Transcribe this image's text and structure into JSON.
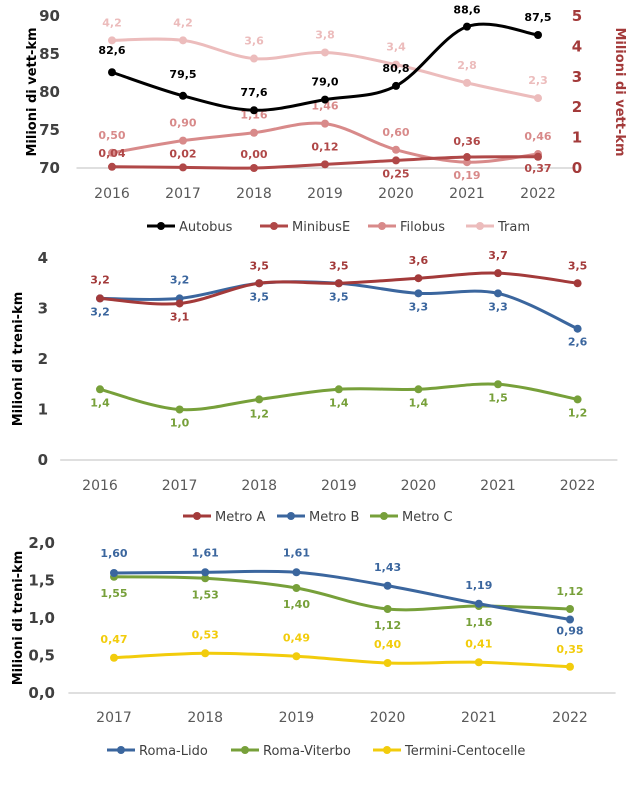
{
  "chart_data": [
    {
      "type": "line",
      "categories": [
        "2016",
        "2017",
        "2018",
        "2019",
        "2020",
        "2021",
        "2022"
      ],
      "ylabel": "Milioni di vett-km",
      "ylabel_right": "Milioni di vett-km",
      "ylim": [
        70,
        90
      ],
      "ylim_right": [
        0,
        5
      ],
      "yticks": [
        "70",
        "75",
        "80",
        "85",
        "90"
      ],
      "yticks_right": [
        "0",
        "1",
        "2",
        "3",
        "4",
        "5"
      ],
      "series": [
        {
          "name": "Autobus",
          "axis": "left",
          "color": "#000000",
          "values": [
            82.6,
            79.5,
            77.6,
            79.0,
            80.8,
            88.6,
            87.5
          ],
          "labels": [
            "82,6",
            "79,5",
            "77,6",
            "79,0",
            "80,8",
            "88,6",
            "87,5"
          ]
        },
        {
          "name": "MinibusE",
          "axis": "right",
          "color": "#b04848",
          "values": [
            0.04,
            0.02,
            0.0,
            0.12,
            0.25,
            0.36,
            0.37
          ],
          "labels": [
            "0,04",
            "0,02",
            "0,00",
            "0,12",
            "0,25",
            "0,36",
            "0,37"
          ]
        },
        {
          "name": "Filobus",
          "axis": "right",
          "color": "#d88a8a",
          "values": [
            0.5,
            0.9,
            1.16,
            1.46,
            0.6,
            0.19,
            0.46
          ],
          "labels": [
            "0,50",
            "0,90",
            "1,16",
            "1,46",
            "0,60",
            "0,19",
            "0,46"
          ]
        },
        {
          "name": "Tram",
          "axis": "right",
          "color": "#ecbcbc",
          "values": [
            4.2,
            4.2,
            3.6,
            3.8,
            3.4,
            2.8,
            2.3
          ],
          "labels": [
            "4,2",
            "4,2",
            "3,6",
            "3,8",
            "3,4",
            "2,8",
            "2,3"
          ]
        }
      ]
    },
    {
      "type": "line",
      "categories": [
        "2016",
        "2017",
        "2018",
        "2019",
        "2020",
        "2021",
        "2022"
      ],
      "ylabel": "Milioni di treni-km",
      "ylim": [
        0,
        4
      ],
      "yticks": [
        "0",
        "1",
        "2",
        "3",
        "4"
      ],
      "series": [
        {
          "name": "Metro A",
          "color": "#a33a3a",
          "values": [
            3.2,
            3.1,
            3.5,
            3.5,
            3.6,
            3.7,
            3.5
          ],
          "labels": [
            "3,2",
            "3,1",
            "3,5",
            "3,5",
            "3,6",
            "3,7",
            "3,5"
          ]
        },
        {
          "name": "Metro B",
          "color": "#3b669e",
          "values": [
            3.2,
            3.2,
            3.5,
            3.5,
            3.3,
            3.3,
            2.6
          ],
          "labels": [
            "3,2",
            "3,2",
            "3,5",
            "3,5",
            "3,3",
            "3,3",
            "2,6"
          ]
        },
        {
          "name": "Metro C",
          "color": "#77a03a",
          "values": [
            1.4,
            1.0,
            1.2,
            1.4,
            1.4,
            1.5,
            1.2
          ],
          "labels": [
            "1,4",
            "1,0",
            "1,2",
            "1,4",
            "1,4",
            "1,5",
            "1,2"
          ]
        }
      ]
    },
    {
      "type": "line",
      "categories": [
        "2017",
        "2018",
        "2019",
        "2020",
        "2021",
        "2022"
      ],
      "ylabel": "Milioni di treni-km",
      "ylim": [
        0,
        2
      ],
      "yticks": [
        "0,0",
        "0,5",
        "1,0",
        "1,5",
        "2,0"
      ],
      "series": [
        {
          "name": "Roma-Lido",
          "color": "#3b669e",
          "values": [
            1.6,
            1.61,
            1.61,
            1.43,
            1.19,
            0.98
          ],
          "labels": [
            "1,60",
            "1,61",
            "1,61",
            "1,43",
            "1,19",
            "0,98"
          ]
        },
        {
          "name": "Roma-Viterbo",
          "color": "#77a03a",
          "values": [
            1.55,
            1.53,
            1.4,
            1.12,
            1.16,
            1.12
          ],
          "labels": [
            "1,55",
            "1,53",
            "1,40",
            "1,12",
            "1,16",
            "1,12"
          ]
        },
        {
          "name": "Termini-Centocelle",
          "color": "#f2cc0c",
          "values": [
            0.47,
            0.53,
            0.49,
            0.4,
            0.41,
            0.35
          ],
          "labels": [
            "0,47",
            "0,53",
            "0,49",
            "0,40",
            "0,41",
            "0,35"
          ]
        }
      ]
    }
  ]
}
